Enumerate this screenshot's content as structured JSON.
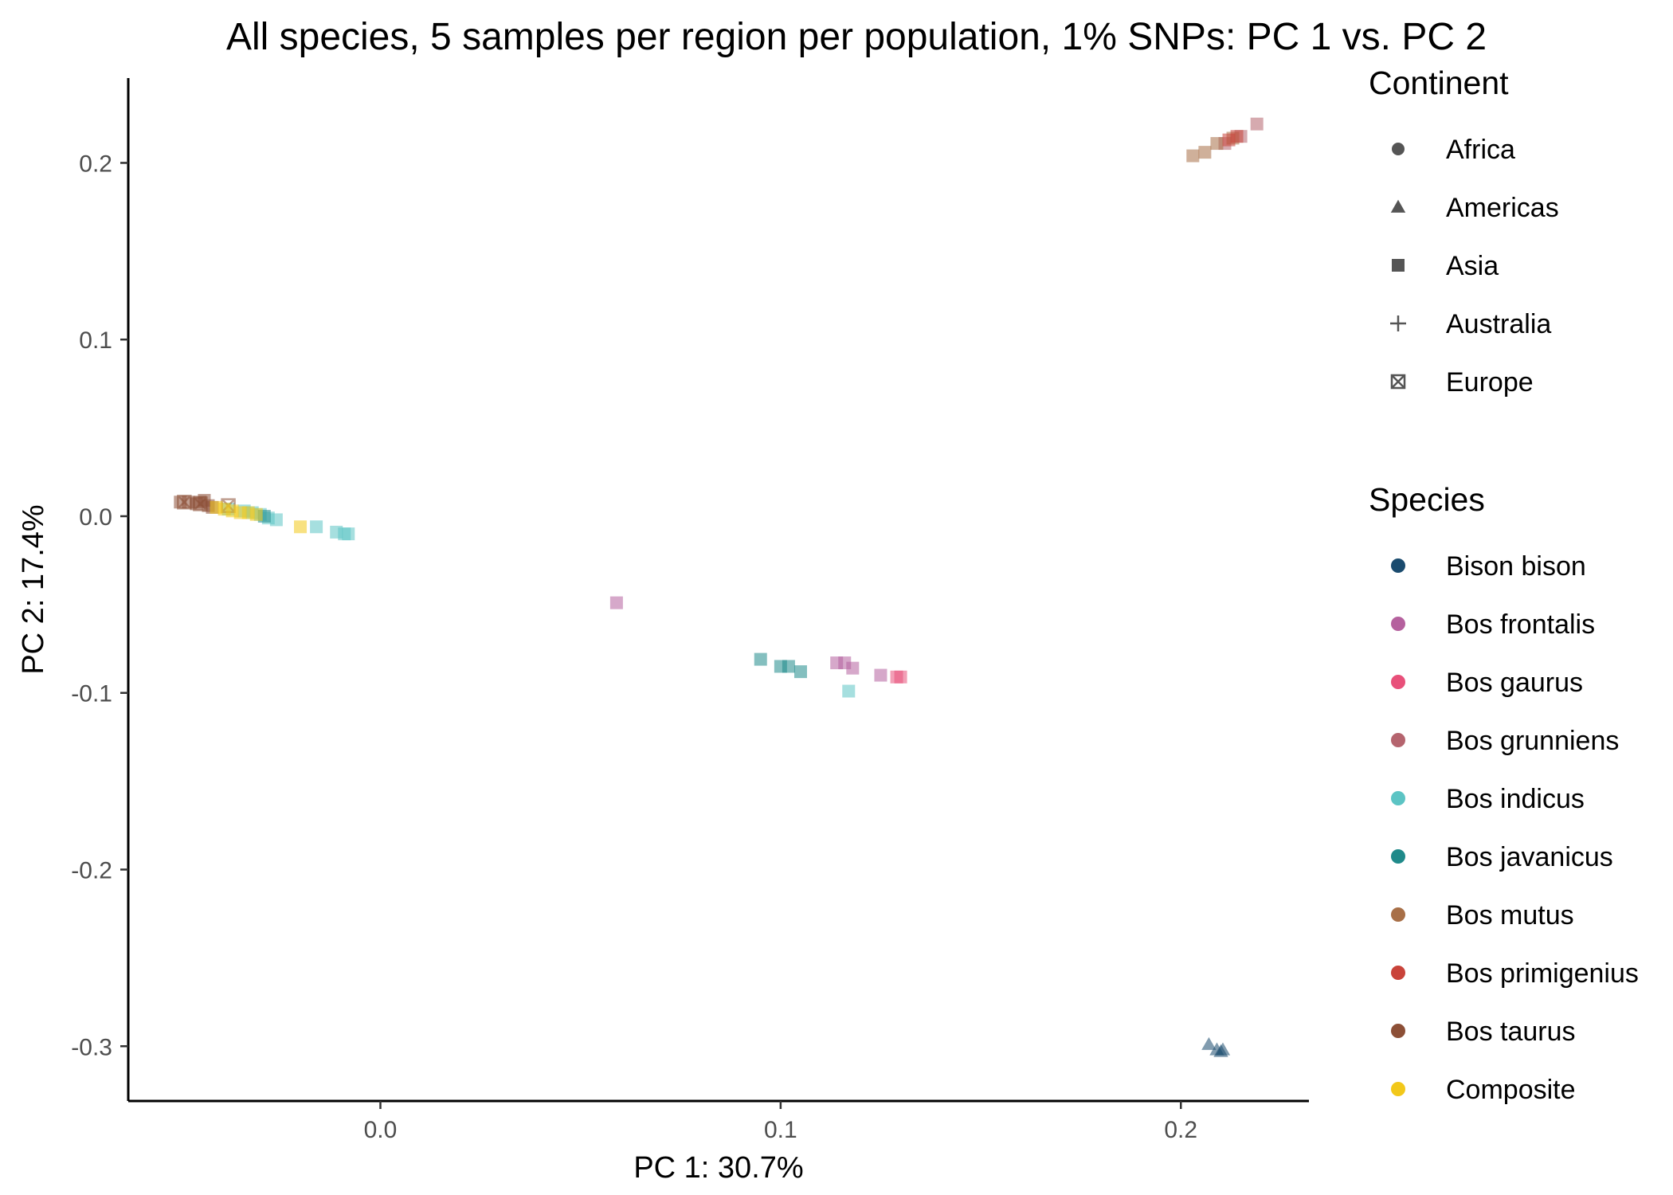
{
  "chart_data": {
    "type": "scatter",
    "title": "All species, 5 samples per region per population, 1% SNPs: PC 1 vs. PC 2",
    "xlabel": "PC 1: 30.7%",
    "ylabel": "PC 2: 17.4%",
    "xlim": [
      -0.063,
      0.232
    ],
    "ylim": [
      -0.331,
      0.248
    ],
    "x_ticks": [
      0.0,
      0.1,
      0.2
    ],
    "x_tick_labels": [
      "0.0",
      "0.1",
      "0.2"
    ],
    "y_ticks": [
      0.2,
      0.1,
      0.0,
      -0.1,
      -0.2,
      -0.3
    ],
    "y_tick_labels": [
      "0.2",
      "0.1",
      "0.0",
      "-0.1",
      "-0.2",
      "-0.3"
    ],
    "grid": false,
    "marker_opacity": 0.55,
    "legends": [
      {
        "title": "Continent",
        "position": "right",
        "items": [
          {
            "label": "Africa",
            "shape": "circle"
          },
          {
            "label": "Americas",
            "shape": "triangle"
          },
          {
            "label": "Asia",
            "shape": "square"
          },
          {
            "label": "Australia",
            "shape": "plus"
          },
          {
            "label": "Europe",
            "shape": "boxed-x"
          }
        ]
      },
      {
        "title": "Species",
        "position": "right",
        "items": [
          {
            "label": "Bison bison",
            "color": "#1a4b6e"
          },
          {
            "label": "Bos frontalis",
            "color": "#b5619e"
          },
          {
            "label": "Bos gaurus",
            "color": "#e8507a"
          },
          {
            "label": "Bos grunniens",
            "color": "#b5646e"
          },
          {
            "label": "Bos indicus",
            "color": "#5cc4c4"
          },
          {
            "label": "Bos javanicus",
            "color": "#1f8a8a"
          },
          {
            "label": "Bos mutus",
            "color": "#a86f47"
          },
          {
            "label": "Bos primigenius",
            "color": "#c9433a"
          },
          {
            "label": "Bos taurus",
            "color": "#8c4f36"
          },
          {
            "label": "Composite",
            "color": "#f2c81a"
          }
        ]
      }
    ],
    "series": [
      {
        "name": "Bison bison",
        "shape": "triangle",
        "points": [
          [
            0.207,
            -0.299
          ],
          [
            0.209,
            -0.302
          ],
          [
            0.21,
            -0.303
          ],
          [
            0.2105,
            -0.302
          ]
        ]
      },
      {
        "name": "Bos frontalis",
        "shape": "square",
        "points": [
          [
            0.059,
            -0.049
          ],
          [
            0.114,
            -0.083
          ],
          [
            0.116,
            -0.083
          ],
          [
            0.118,
            -0.086
          ],
          [
            0.125,
            -0.09
          ]
        ]
      },
      {
        "name": "Bos gaurus",
        "shape": "square",
        "points": [
          [
            0.129,
            -0.091
          ],
          [
            0.13,
            -0.091
          ]
        ]
      },
      {
        "name": "Bos grunniens",
        "shape": "square",
        "points": [
          [
            0.219,
            0.222
          ],
          [
            0.215,
            0.215
          ],
          [
            0.211,
            0.211
          ]
        ]
      },
      {
        "name": "Bos indicus",
        "shape": "square",
        "points": [
          [
            -0.038,
            0.004
          ],
          [
            -0.034,
            0.003
          ],
          [
            -0.032,
            0.002
          ],
          [
            -0.03,
            0.001
          ],
          [
            -0.028,
            -0.001
          ],
          [
            -0.026,
            -0.002
          ],
          [
            -0.016,
            -0.006
          ],
          [
            -0.011,
            -0.009
          ],
          [
            -0.009,
            -0.01
          ],
          [
            -0.008,
            -0.01
          ],
          [
            0.117,
            -0.099
          ]
        ]
      },
      {
        "name": "Bos javanicus",
        "shape": "square",
        "points": [
          [
            0.095,
            -0.081
          ],
          [
            0.1,
            -0.085
          ],
          [
            0.102,
            -0.085
          ],
          [
            0.105,
            -0.088
          ],
          [
            -0.029,
            0.0
          ]
        ]
      },
      {
        "name": "Bos mutus",
        "shape": "square",
        "points": [
          [
            0.203,
            0.204
          ],
          [
            0.206,
            0.206
          ],
          [
            0.209,
            0.211
          ],
          [
            0.213,
            0.214
          ]
        ]
      },
      {
        "name": "Bos primigenius",
        "shape": "square",
        "points": [
          [
            0.212,
            0.213
          ],
          [
            0.214,
            0.215
          ]
        ]
      },
      {
        "name": "Bos taurus",
        "shape": "square",
        "points": [
          [
            -0.05,
            0.008
          ],
          [
            -0.048,
            0.008
          ],
          [
            -0.046,
            0.007
          ],
          [
            -0.045,
            0.008
          ],
          [
            -0.044,
            0.009
          ],
          [
            -0.043,
            0.006
          ],
          [
            -0.042,
            0.005
          ]
        ]
      },
      {
        "name": "Bos taurus",
        "shape": "boxed-x",
        "points": [
          [
            -0.049,
            0.008
          ],
          [
            -0.045,
            0.007
          ],
          [
            -0.038,
            0.006
          ]
        ]
      },
      {
        "name": "Composite",
        "shape": "square",
        "points": [
          [
            -0.041,
            0.005
          ],
          [
            -0.039,
            0.004
          ],
          [
            -0.037,
            0.003
          ],
          [
            -0.035,
            0.002
          ],
          [
            -0.033,
            0.002
          ],
          [
            -0.031,
            0.001
          ],
          [
            -0.02,
            -0.006
          ]
        ]
      }
    ]
  }
}
